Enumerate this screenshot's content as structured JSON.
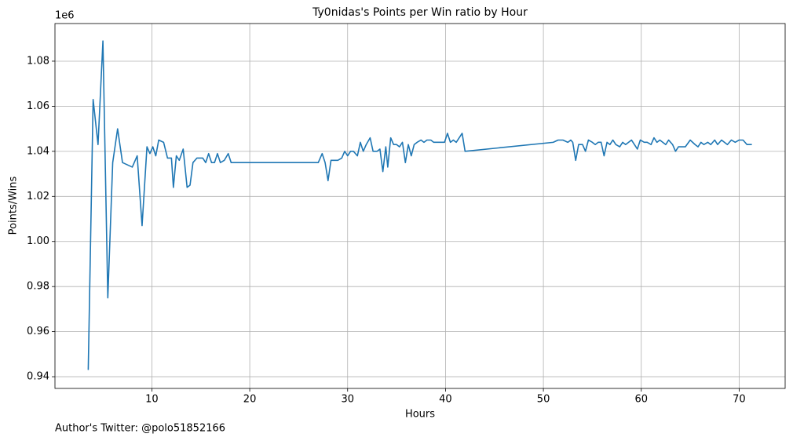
{
  "chart_data": {
    "type": "line",
    "title": "Ty0nidas's Points per Win ratio by Hour",
    "x_label": "Hours",
    "y_label": "Points/Wins",
    "y_offset_label": "1e6",
    "footer": "Author's Twitter: @polo51852166",
    "x": [
      3.5,
      4.0,
      4.5,
      5.0,
      5.5,
      6.0,
      6.5,
      7.0,
      8.0,
      8.5,
      9.0,
      9.5,
      9.8,
      10.1,
      10.4,
      10.7,
      11.2,
      11.6,
      12.0,
      12.2,
      12.5,
      12.8,
      13.2,
      13.6,
      13.9,
      14.2,
      14.6,
      15.2,
      15.5,
      15.8,
      16.1,
      16.4,
      16.7,
      17.0,
      17.4,
      17.8,
      18.1,
      27.0,
      27.4,
      27.7,
      28.0,
      28.3,
      29.0,
      29.4,
      29.7,
      30.0,
      30.3,
      30.6,
      31.0,
      31.3,
      31.6,
      31.9,
      32.3,
      32.6,
      33.0,
      33.3,
      33.6,
      33.9,
      34.1,
      34.4,
      34.7,
      35.0,
      35.3,
      35.6,
      35.9,
      36.2,
      36.5,
      36.8,
      37.1,
      37.5,
      37.8,
      38.1,
      38.5,
      38.8,
      39.2,
      39.6,
      39.9,
      40.2,
      40.5,
      40.8,
      41.1,
      41.4,
      41.7,
      42.0,
      51.0,
      51.5,
      52.0,
      52.5,
      52.8,
      53.0,
      53.3,
      53.6,
      54.0,
      54.3,
      54.6,
      55.0,
      55.3,
      55.6,
      55.9,
      56.2,
      56.5,
      56.8,
      57.1,
      57.4,
      57.8,
      58.1,
      58.4,
      58.7,
      59.0,
      59.3,
      59.6,
      59.9,
      60.3,
      60.6,
      61.0,
      61.3,
      61.6,
      61.9,
      62.2,
      62.5,
      62.8,
      63.2,
      63.5,
      63.8,
      64.5,
      65.0,
      65.5,
      65.8,
      66.1,
      66.4,
      66.8,
      67.1,
      67.5,
      67.8,
      68.2,
      68.5,
      68.8,
      69.2,
      69.6,
      70.0,
      70.4,
      70.8,
      71.3
    ],
    "series": [
      {
        "color": "#1f77b4",
        "values": [
          943000,
          1063000,
          1043000,
          1089000,
          975000,
          1035000,
          1050000,
          1035000,
          1033000,
          1038000,
          1007000,
          1042000,
          1039000,
          1042000,
          1038000,
          1045000,
          1044000,
          1037000,
          1037000,
          1024000,
          1038000,
          1036000,
          1041000,
          1024000,
          1025000,
          1035000,
          1037000,
          1037000,
          1035000,
          1039000,
          1035000,
          1035000,
          1039000,
          1035000,
          1036000,
          1039000,
          1035000,
          1035000,
          1039000,
          1035000,
          1027000,
          1036000,
          1036000,
          1037000,
          1040000,
          1038000,
          1040000,
          1040000,
          1038000,
          1044000,
          1040000,
          1043000,
          1046000,
          1040000,
          1040000,
          1041000,
          1031000,
          1042000,
          1033000,
          1046000,
          1043000,
          1043000,
          1042000,
          1044000,
          1035000,
          1043000,
          1038000,
          1043000,
          1044000,
          1045000,
          1044000,
          1045000,
          1045000,
          1044000,
          1044000,
          1044000,
          1044000,
          1048000,
          1044000,
          1045000,
          1044000,
          1046000,
          1048000,
          1040000,
          1044000,
          1045000,
          1045000,
          1044000,
          1045000,
          1044000,
          1036000,
          1043000,
          1043000,
          1040000,
          1045000,
          1044000,
          1043000,
          1044000,
          1044000,
          1038000,
          1044000,
          1043000,
          1045000,
          1043000,
          1042000,
          1044000,
          1043000,
          1044000,
          1045000,
          1043000,
          1041000,
          1045000,
          1044000,
          1044000,
          1043000,
          1046000,
          1044000,
          1045000,
          1044000,
          1043000,
          1045000,
          1043000,
          1040000,
          1042000,
          1042000,
          1045000,
          1043000,
          1042000,
          1044000,
          1043000,
          1044000,
          1043000,
          1045000,
          1043000,
          1045000,
          1044000,
          1043000,
          1045000,
          1044000,
          1045000,
          1045000,
          1043000,
          1043000
        ]
      }
    ],
    "xlim": [
      0.1,
      74.7
    ],
    "ylim": [
      934800,
      1096700
    ],
    "xticks": [
      10,
      20,
      30,
      40,
      50,
      60,
      70
    ],
    "yticks": [
      {
        "value": 940000,
        "label": "0.94"
      },
      {
        "value": 960000,
        "label": "0.96"
      },
      {
        "value": 980000,
        "label": "0.98"
      },
      {
        "value": 1000000,
        "label": "1.00"
      },
      {
        "value": 1020000,
        "label": "1.02"
      },
      {
        "value": 1040000,
        "label": "1.04"
      },
      {
        "value": 1060000,
        "label": "1.06"
      },
      {
        "value": 1080000,
        "label": "1.08"
      }
    ],
    "grid": true
  }
}
